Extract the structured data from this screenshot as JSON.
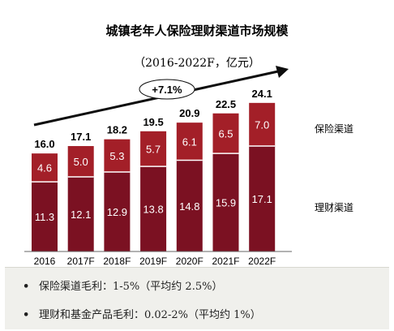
{
  "title": "城镇老年人保险理财渠道市场规模",
  "subtitle": "（2016-2022F，亿元）",
  "growth_label": "+7.1%",
  "colors": {
    "insurance": "#a31f28",
    "wealth": "#7b1122",
    "grid_line": "#ffffff"
  },
  "chart_data": {
    "type": "bar",
    "stacked": true,
    "title": "城镇老年人保险理财渠道市场规模",
    "subtitle": "（2016-2022F，亿元）",
    "unit": "亿元",
    "categories": [
      "2016",
      "2017F",
      "2018F",
      "2019F",
      "2020F",
      "2021F",
      "2022F"
    ],
    "series": [
      {
        "name": "理财渠道",
        "values": [
          "11.3",
          "12.1",
          "12.9",
          "13.8",
          "14.8",
          "15.9",
          "17.1"
        ]
      },
      {
        "name": "保险渠道",
        "values": [
          "4.6",
          "5.0",
          "5.3",
          "5.7",
          "6.1",
          "6.5",
          "7.0"
        ]
      }
    ],
    "totals": [
      "16.0",
      "17.1",
      "18.2",
      "19.5",
      "20.9",
      "22.5",
      "24.1"
    ],
    "ylim": [
      0,
      25
    ],
    "legend_placement": "right"
  },
  "notes": [
    "保险渠道毛利：1-5%（平均约 2.5%）",
    "理财和基金产品毛利：0.02-2%（平均约 1%）"
  ],
  "bullet": "•"
}
